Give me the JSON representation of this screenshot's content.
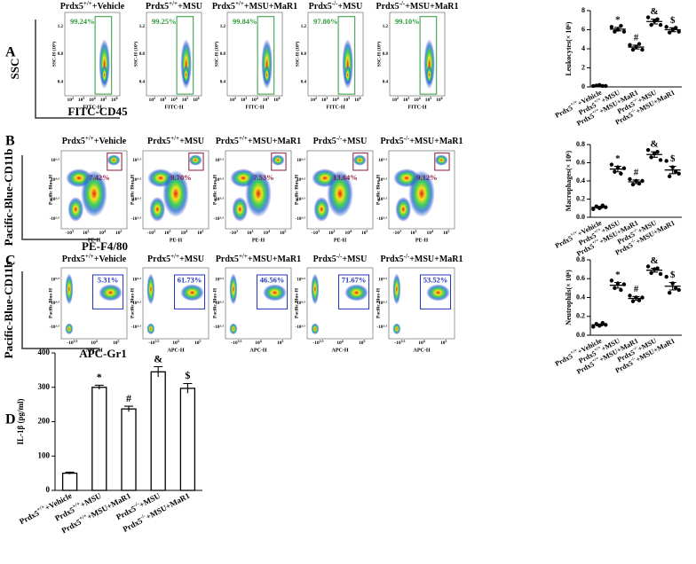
{
  "flow_panels": [
    {
      "letter": "A",
      "axis_x": "FITC-CD45",
      "axis_y": "SSC",
      "x_label": "FITC-H",
      "y_label": "SSC-H (10⁶)",
      "xticks": [
        {
          "base": "10",
          "exp": "2"
        },
        {
          "base": "10",
          "exp": "3"
        },
        {
          "base": "10",
          "exp": "4"
        },
        {
          "base": "10",
          "exp": "5"
        },
        {
          "base": "10",
          "exp": "6"
        }
      ],
      "yticks": [
        "1.2",
        "0.8",
        "0.4"
      ],
      "plots": [
        {
          "title": {
            "gene": "Prdx5",
            "genotype": "+/+",
            "treatment": "+Vehicle"
          },
          "gate": "99.24%"
        },
        {
          "title": {
            "gene": "Prdx5",
            "genotype": "+/+",
            "treatment": "+MSU"
          },
          "gate": "99.25%"
        },
        {
          "title": {
            "gene": "Prdx5",
            "genotype": "+/+",
            "treatment": "+MSU+MaR1"
          },
          "gate": "99.84%"
        },
        {
          "title": {
            "gene": "Prdx5",
            "genotype": "-/-",
            "treatment": "+MSU"
          },
          "gate": "97.80%"
        },
        {
          "title": {
            "gene": "Prdx5",
            "genotype": "-/-",
            "treatment": "+MSU+MaR1"
          },
          "gate": "99.10%"
        }
      ]
    },
    {
      "letter": "B",
      "axis_x": "PE-F4/80",
      "axis_y": "Pacific-Blue-CD11b",
      "x_label": "PE-H",
      "y_label": "Pacific Blue-H",
      "xticks": [
        {
          "base": "-10",
          "exp": "3"
        },
        {
          "base": "10",
          "exp": "3"
        },
        {
          "base": "10",
          "exp": "4"
        },
        {
          "base": "10",
          "exp": "5"
        }
      ],
      "yticks": [
        "10⁵·⁵",
        "10⁴·⁵",
        "10³·⁵",
        "-10³·⁵"
      ],
      "plots": [
        {
          "title": {
            "gene": "Prdx5",
            "genotype": "+/+",
            "treatment": "+Vehicle"
          },
          "gate": "7.42%"
        },
        {
          "title": {
            "gene": "Prdx5",
            "genotype": "+/+",
            "treatment": "+MSU"
          },
          "gate": "9.70%"
        },
        {
          "title": {
            "gene": "Prdx5",
            "genotype": "+/+",
            "treatment": "+MSU+MaR1"
          },
          "gate": "7.53%"
        },
        {
          "title": {
            "gene": "Prdx5",
            "genotype": "-/-",
            "treatment": "+MSU"
          },
          "gate": "13.84%"
        },
        {
          "title": {
            "gene": "Prdx5",
            "genotype": "-/-",
            "treatment": "+MSU+MaR1"
          },
          "gate": "9.12%"
        }
      ]
    },
    {
      "letter": "C",
      "axis_x": "APC-Gr1",
      "axis_y": "Pacific-Blue-CD11b",
      "x_label": "APC-H",
      "y_label": "Pacific Blue-H",
      "xticks": [
        {
          "base": "-10",
          "exp": "3.5"
        },
        {
          "base": "10",
          "exp": "4"
        },
        {
          "base": "10",
          "exp": "5"
        }
      ],
      "yticks": [
        "10⁵·⁵",
        "10⁴·⁵",
        "-10³·⁵"
      ],
      "plots": [
        {
          "title": {
            "gene": "Prdx5",
            "genotype": "+/+",
            "treatment": "+Vehicle"
          },
          "gate": "5.31%"
        },
        {
          "title": {
            "gene": "Prdx5",
            "genotype": "+/+",
            "treatment": "+MSU"
          },
          "gate": "61.73%"
        },
        {
          "title": {
            "gene": "Prdx5",
            "genotype": "+/+",
            "treatment": "+MSU+MaR1"
          },
          "gate": "46.56%"
        },
        {
          "title": {
            "gene": "Prdx5",
            "genotype": "-/-",
            "treatment": "+MSU"
          },
          "gate": "71.67%"
        },
        {
          "title": {
            "gene": "Prdx5",
            "genotype": "-/-",
            "treatment": "+MSU+MaR1"
          },
          "gate": "53.52%"
        }
      ]
    }
  ],
  "chart_data": [
    {
      "type": "dot",
      "y_label": "Leukocytes(× 10⁶)",
      "categories": [
        {
          "gene": "Prdx5",
          "genotype": "+/+",
          "treatment": "+Vehicle"
        },
        {
          "gene": "Prdx5",
          "genotype": "+/+",
          "treatment": "+MSU"
        },
        {
          "gene": "Prdx5",
          "genotype": "+/+",
          "treatment": "+MSU+MaR1"
        },
        {
          "gene": "Prdx5",
          "genotype": "-/-",
          "treatment": "+MSU"
        },
        {
          "gene": "Prdx5",
          "genotype": "-/-",
          "treatment": "+MSU+MaR1"
        }
      ],
      "values": [
        0.13,
        6.06,
        4.18,
        6.86,
        6.0
      ],
      "errors": [
        0.03,
        0.18,
        0.2,
        0.25,
        0.2
      ],
      "points": [
        [
          0.1,
          0.15,
          0.2,
          0.1,
          0.1
        ],
        [
          6.3,
          5.8,
          6.0,
          6.4,
          5.8
        ],
        [
          4.4,
          3.9,
          4.2,
          4.5,
          3.9
        ],
        [
          7.3,
          6.5,
          6.9,
          7.1,
          6.5
        ],
        [
          6.3,
          5.7,
          6.0,
          6.2,
          5.8
        ]
      ],
      "annotations": [
        null,
        "*",
        "#",
        "&",
        "$"
      ],
      "ylim": [
        0,
        8
      ],
      "yticks": [
        0,
        2,
        4,
        6,
        8
      ],
      "color": "#000000"
    },
    {
      "type": "dot",
      "y_label": "Macrophages(× 10⁶)",
      "categories": [
        {
          "gene": "Prdx5",
          "genotype": "+/+",
          "treatment": "+Vehicle"
        },
        {
          "gene": "Prdx5",
          "genotype": "+/+",
          "treatment": "+MSU"
        },
        {
          "gene": "Prdx5",
          "genotype": "+/+",
          "treatment": "+MSU+MaR1"
        },
        {
          "gene": "Prdx5",
          "genotype": "-/-",
          "treatment": "+MSU"
        },
        {
          "gene": "Prdx5",
          "genotype": "-/-",
          "treatment": "+MSU+MaR1"
        }
      ],
      "values": [
        0.11,
        0.53,
        0.39,
        0.69,
        0.52
      ],
      "errors": [
        0.01,
        0.03,
        0.02,
        0.03,
        0.04
      ],
      "points": [
        [
          0.09,
          0.12,
          0.1,
          0.13,
          0.11
        ],
        [
          0.58,
          0.5,
          0.55,
          0.48,
          0.54
        ],
        [
          0.42,
          0.36,
          0.4,
          0.37,
          0.4
        ],
        [
          0.74,
          0.66,
          0.7,
          0.72,
          0.63
        ],
        [
          0.62,
          0.45,
          0.55,
          0.5,
          0.48
        ]
      ],
      "annotations": [
        null,
        "*",
        "#",
        "&",
        "$"
      ],
      "ylim": [
        0,
        0.8
      ],
      "yticks": [
        {
          "value": 0,
          "label": "0.0"
        },
        0.2,
        0.4,
        0.6,
        0.8
      ],
      "color": "#000000"
    },
    {
      "type": "dot",
      "y_label": "Neutrophils(× 10⁶)",
      "categories": [
        {
          "gene": "Prdx5",
          "genotype": "+/+",
          "treatment": "+Vehicle"
        },
        {
          "gene": "Prdx5",
          "genotype": "+/+",
          "treatment": "+MSU"
        },
        {
          "gene": "Prdx5",
          "genotype": "+/+",
          "treatment": "+MSU+MaR1"
        },
        {
          "gene": "Prdx5",
          "genotype": "-/-",
          "treatment": "+MSU"
        },
        {
          "gene": "Prdx5",
          "genotype": "-/-",
          "treatment": "+MSU+MaR1"
        }
      ],
      "values": [
        0.11,
        0.53,
        0.39,
        0.69,
        0.52
      ],
      "errors": [
        0.01,
        0.03,
        0.02,
        0.02,
        0.04
      ],
      "points": [
        [
          0.09,
          0.12,
          0.1,
          0.13,
          0.11
        ],
        [
          0.58,
          0.5,
          0.55,
          0.48,
          0.54
        ],
        [
          0.42,
          0.36,
          0.4,
          0.37,
          0.4
        ],
        [
          0.73,
          0.66,
          0.7,
          0.71,
          0.65
        ],
        [
          0.62,
          0.45,
          0.55,
          0.5,
          0.48
        ]
      ],
      "annotations": [
        null,
        "*",
        "#",
        "&",
        "$"
      ],
      "ylim": [
        0,
        0.8
      ],
      "yticks": [
        {
          "value": 0,
          "label": "0.0"
        },
        0.2,
        0.4,
        0.6,
        0.8
      ],
      "color": "#000000"
    },
    {
      "type": "bar",
      "letter": "D",
      "y_label": "IL-1β (pg/ml)",
      "categories": [
        {
          "gene": "Prdx5",
          "genotype": "+/+",
          "treatment": "+Vehicle"
        },
        {
          "gene": "Prdx5",
          "genotype": "+/+",
          "treatment": "+MSU"
        },
        {
          "gene": "Prdx5",
          "genotype": "+/+",
          "treatment": "+MSU+MaR1"
        },
        {
          "gene": "Prdx5",
          "genotype": "-/-",
          "treatment": "+MSU"
        },
        {
          "gene": "Prdx5",
          "genotype": "-/-",
          "treatment": "+MSU+MaR1"
        }
      ],
      "values": [
        50,
        300,
        237,
        345,
        297
      ],
      "errors": [
        3,
        6,
        8,
        15,
        14
      ],
      "annotations": [
        null,
        "*",
        "#",
        "&",
        "$"
      ],
      "ylim": [
        0,
        400
      ],
      "yticks": [
        0,
        100,
        200,
        300,
        400
      ],
      "color": "#ffffff"
    }
  ]
}
